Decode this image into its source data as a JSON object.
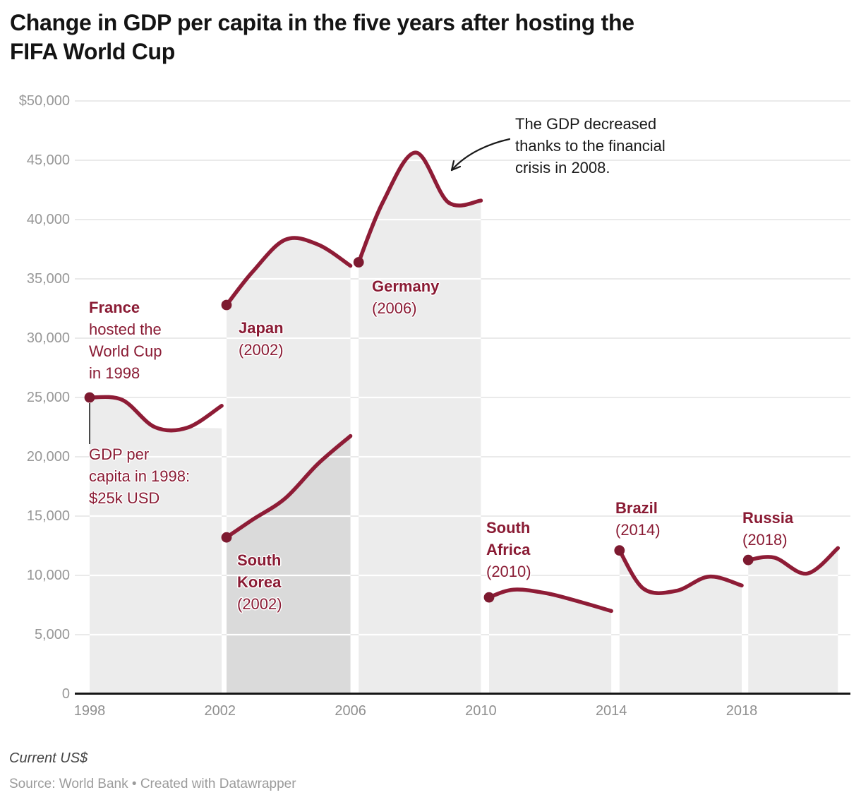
{
  "header": {
    "title": "Change in GDP per capita in the five years after hosting the FIFA World Cup"
  },
  "footer": {
    "axis_unit_note": "Current US$",
    "source_line": "Source: World Bank • Created with Datawrapper"
  },
  "colors": {
    "line": "#8e1c36",
    "marker": "#7d1a30",
    "band_fill": "rgba(0,0,0,0.075)",
    "annotation_red": "#8a1b34",
    "annotation_black": "#1a1a1a",
    "grid": "#e4e4e4",
    "grid_on_band": "#ffffff",
    "axis_line": "#151515",
    "title_color": "#141414"
  },
  "chart_data": {
    "type": "line",
    "title": "Change in GDP per capita in the five years after hosting the FIFA World Cup",
    "unit": "Current US$",
    "source": "World Bank",
    "grid": "horizontal",
    "legend": "none (labels annotated on chart)",
    "ylim": [
      0,
      50000
    ],
    "y_tick_values": [
      50000,
      45000,
      40000,
      35000,
      30000,
      25000,
      20000,
      15000,
      10000,
      5000,
      0
    ],
    "y_tick_labels": [
      "$50,000",
      "45,000",
      "40,000",
      "35,000",
      "30,000",
      "25,000",
      "20,000",
      "15,000",
      "10,000",
      "5,000",
      "0"
    ],
    "x_tick_labels": [
      "1998",
      "2002",
      "2006",
      "2010",
      "2014",
      "2018"
    ],
    "x_tick_years": [
      1998,
      2002,
      2006,
      2010,
      2014,
      2018
    ],
    "series": [
      {
        "country": "France",
        "host_year": 1998,
        "label_lines": [
          {
            "text": "France",
            "bold": true
          },
          {
            "text": "hosted the",
            "bold": false
          },
          {
            "text": "World Cup",
            "bold": false
          },
          {
            "text": "in 1998",
            "bold": false
          }
        ],
        "points": [
          {
            "year": 1998,
            "value": 25000
          },
          {
            "year": 1999,
            "value": 24800
          },
          {
            "year": 2000,
            "value": 22500
          },
          {
            "year": 2001,
            "value": 22450
          },
          {
            "year": 2002.05,
            "value": 24300
          }
        ],
        "band_top_values": [
          25000,
          24800,
          22500,
          22450,
          22400
        ]
      },
      {
        "country": "Japan",
        "host_year": 2002,
        "label_lines": [
          {
            "text": "Japan",
            "bold": true
          },
          {
            "text": "(2002)",
            "bold": false
          }
        ],
        "points": [
          {
            "year": 2002.2,
            "value": 32800
          },
          {
            "year": 2003,
            "value": 35600
          },
          {
            "year": 2004,
            "value": 38300
          },
          {
            "year": 2005,
            "value": 37900
          },
          {
            "year": 2006,
            "value": 36100
          }
        ]
      },
      {
        "country": "South Korea",
        "host_year": 2002,
        "label_lines": [
          {
            "text": "South",
            "bold": true
          },
          {
            "text": "Korea",
            "bold": true
          },
          {
            "text": "(2002)",
            "bold": false
          }
        ],
        "points": [
          {
            "year": 2002.2,
            "value": 13200
          },
          {
            "year": 2003,
            "value": 14700
          },
          {
            "year": 2004,
            "value": 16500
          },
          {
            "year": 2005,
            "value": 19400
          },
          {
            "year": 2006,
            "value": 21750
          }
        ]
      },
      {
        "country": "Germany",
        "host_year": 2006,
        "label_lines": [
          {
            "text": "Germany",
            "bold": true
          },
          {
            "text": "(2006)",
            "bold": false
          }
        ],
        "points": [
          {
            "year": 2006.25,
            "value": 36400
          },
          {
            "year": 2007,
            "value": 41500
          },
          {
            "year": 2008,
            "value": 45650
          },
          {
            "year": 2009,
            "value": 41450
          },
          {
            "year": 2010,
            "value": 41600
          }
        ]
      },
      {
        "country": "South Africa",
        "host_year": 2010,
        "label_lines": [
          {
            "text": "South",
            "bold": true
          },
          {
            "text": "Africa",
            "bold": true
          },
          {
            "text": "(2010)",
            "bold": false
          }
        ],
        "points": [
          {
            "year": 2010.25,
            "value": 8150
          },
          {
            "year": 2011,
            "value": 8800
          },
          {
            "year": 2012,
            "value": 8500
          },
          {
            "year": 2013,
            "value": 7800
          },
          {
            "year": 2014,
            "value": 7000
          }
        ]
      },
      {
        "country": "Brazil",
        "host_year": 2014,
        "label_lines": [
          {
            "text": "Brazil",
            "bold": true
          },
          {
            "text": "(2014)",
            "bold": false
          }
        ],
        "points": [
          {
            "year": 2014.25,
            "value": 12100
          },
          {
            "year": 2015,
            "value": 8850
          },
          {
            "year": 2016,
            "value": 8700
          },
          {
            "year": 2017,
            "value": 9900
          },
          {
            "year": 2018,
            "value": 9150
          }
        ]
      },
      {
        "country": "Russia",
        "host_year": 2018,
        "label_lines": [
          {
            "text": "Russia",
            "bold": true
          },
          {
            "text": "(2018)",
            "bold": false
          }
        ],
        "points": [
          {
            "year": 2018.2,
            "value": 11300
          },
          {
            "year": 2019,
            "value": 11500
          },
          {
            "year": 2020,
            "value": 10150
          },
          {
            "year": 2020.95,
            "value": 12300
          }
        ]
      }
    ],
    "annotations": [
      {
        "id": "gdp_note",
        "color": "red",
        "lines": [
          {
            "text": "GDP per",
            "bold": false
          },
          {
            "text": "capita in 1998:",
            "bold": false
          },
          {
            "text": "$25k USD",
            "bold": false
          }
        ]
      },
      {
        "id": "crisis_note",
        "color": "black",
        "lines": [
          {
            "text": "The GDP decreased",
            "bold": false
          },
          {
            "text": "thanks to the financial",
            "bold": false
          },
          {
            "text": "crisis in 2008.",
            "bold": false
          }
        ]
      }
    ]
  }
}
